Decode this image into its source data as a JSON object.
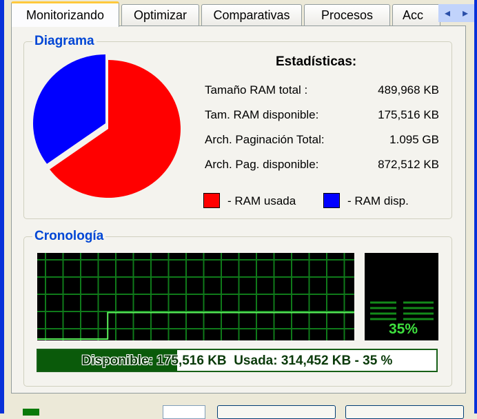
{
  "tabs": [
    {
      "label": "Monitorizando",
      "active": true
    },
    {
      "label": "Optimizar"
    },
    {
      "label": "Comparativas"
    },
    {
      "label": "Procesos"
    },
    {
      "label": "Acc"
    }
  ],
  "diagram": {
    "title": "Diagrama",
    "used_percent": 65,
    "available_percent": 35,
    "colors": {
      "used": "#ff0000",
      "available": "#0000ff"
    }
  },
  "stats": {
    "title": "Estadísticas:",
    "rows": [
      {
        "label": "Tamaño RAM total :",
        "value": "489,968 KB"
      },
      {
        "label": "Tam. RAM disponible:",
        "value": "175,516 KB"
      },
      {
        "label": "Arch. Paginación Total:",
        "value": "1.095 GB"
      },
      {
        "label": "Arch. Pag. disponible:",
        "value": "872,512 KB"
      }
    ],
    "legend_used": "- RAM usada",
    "legend_available": "- RAM disp."
  },
  "timeline": {
    "title": "Cronología",
    "history_percent": [
      0,
      0,
      0,
      0,
      35,
      35,
      35,
      35,
      35,
      35,
      35,
      35,
      35,
      35,
      35,
      35,
      35,
      35
    ],
    "meter_label": "35%",
    "meter_percent": 35,
    "bar_text": "Disponible: 175,516 KB  Usada: 314,452 KB - 35 %",
    "bar_percent": 35
  }
}
